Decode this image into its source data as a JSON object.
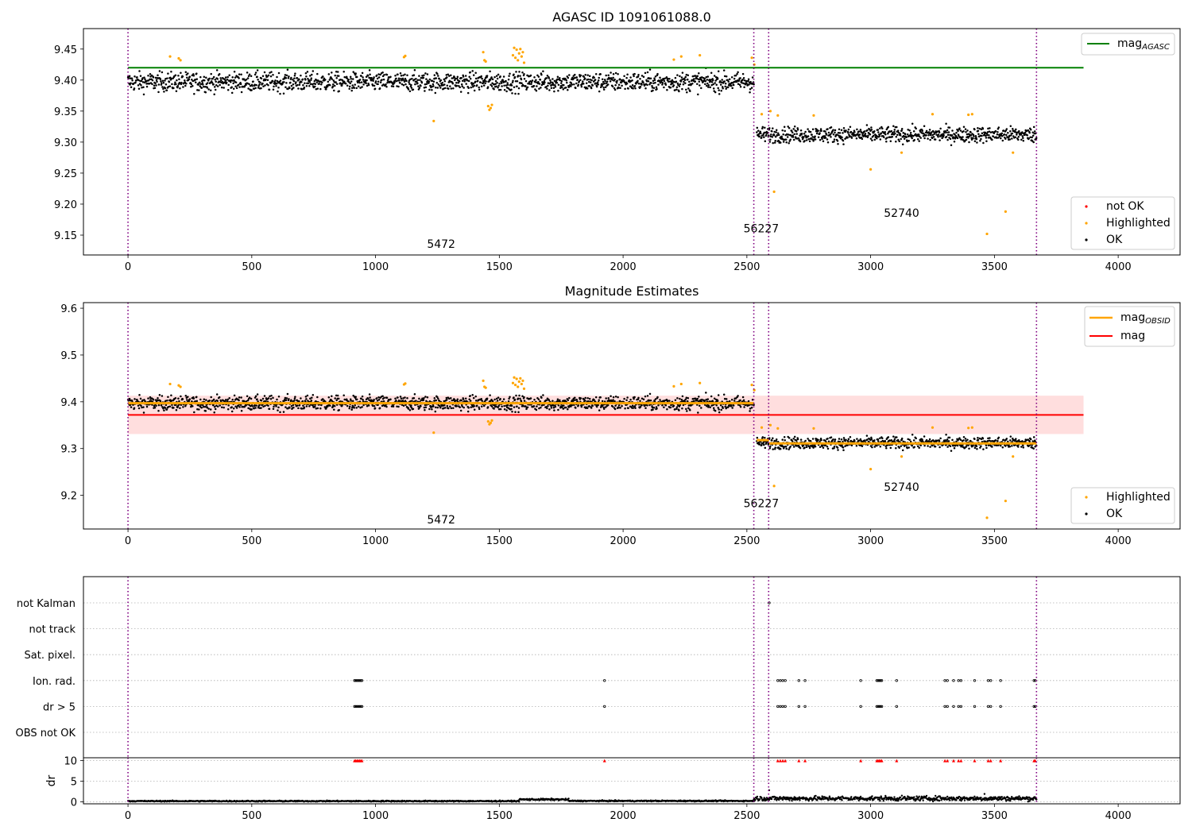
{
  "colors": {
    "ok": "#000000",
    "highlighted": "#ffa500",
    "not_ok": "#ff0000",
    "mag_agasc_line": "#008000",
    "mag_obsid_line": "#ffa500",
    "mag_line": "#ff0000",
    "mag_band": "#ffcccc",
    "obs_boundaries": "#800080",
    "flag_points": "#000000",
    "dr_flagged": "#ff0000"
  },
  "chart_data": [
    {
      "type": "scatter",
      "title": "AGASC ID 1091061088.0",
      "xlim": [
        -180,
        4250
      ],
      "ylim": [
        9.118,
        9.483
      ],
      "xticks": [
        0,
        500,
        1000,
        1500,
        2000,
        2500,
        3000,
        3500,
        4000
      ],
      "yticks": [
        9.15,
        9.2,
        9.25,
        9.3,
        9.35,
        9.4,
        9.45
      ],
      "grid": false,
      "legend_top": {
        "position": "top-right",
        "entries": [
          "mag_AGASC"
        ]
      },
      "legend_bottom": {
        "position": "lower-right",
        "entries": [
          "not OK",
          "Highlighted",
          "OK"
        ]
      },
      "mag_agasc": 9.42,
      "mag_agasc_x_range": [
        0,
        3860
      ],
      "obs_boundaries": [
        0,
        2528,
        2588,
        3670
      ],
      "obs_labels": [
        {
          "text": "5472",
          "x": 1265,
          "y": 9.136
        },
        {
          "text": "56227",
          "x": 2558,
          "y": 9.161
        },
        {
          "text": "52740",
          "x": 3125,
          "y": 9.186
        }
      ],
      "series": [
        {
          "name": "OK",
          "segments": [
            {
              "x_range": [
                0,
                2528
              ],
              "mean": 9.397,
              "scatter": 0.011
            },
            {
              "x_range": [
                2540,
                3670
              ],
              "mean": 9.312,
              "scatter": 0.009
            }
          ]
        },
        {
          "name": "Highlighted",
          "points": [
            [
              170,
              9.438
            ],
            [
              205,
              9.435
            ],
            [
              212,
              9.432
            ],
            [
              1115,
              9.437
            ],
            [
              1120,
              9.439
            ],
            [
              1235,
              9.334
            ],
            [
              1435,
              9.445
            ],
            [
              1440,
              9.432
            ],
            [
              1445,
              9.43
            ],
            [
              1455,
              9.358
            ],
            [
              1460,
              9.352
            ],
            [
              1465,
              9.355
            ],
            [
              1470,
              9.36
            ],
            [
              1555,
              9.44
            ],
            [
              1560,
              9.452
            ],
            [
              1565,
              9.436
            ],
            [
              1570,
              9.449
            ],
            [
              1575,
              9.432
            ],
            [
              1580,
              9.443
            ],
            [
              1585,
              9.45
            ],
            [
              1590,
              9.438
            ],
            [
              1595,
              9.445
            ],
            [
              1600,
              9.428
            ],
            [
              2205,
              9.433
            ],
            [
              2235,
              9.438
            ],
            [
              2310,
              9.44
            ],
            [
              2520,
              9.436
            ],
            [
              2530,
              9.425
            ],
            [
              2560,
              9.345
            ],
            [
              2595,
              9.35
            ],
            [
              2610,
              9.22
            ],
            [
              2625,
              9.343
            ],
            [
              2770,
              9.343
            ],
            [
              3000,
              9.256
            ],
            [
              3125,
              9.283
            ],
            [
              3250,
              9.345
            ],
            [
              3395,
              9.344
            ],
            [
              3410,
              9.345
            ],
            [
              3470,
              9.152
            ],
            [
              3545,
              9.188
            ],
            [
              3575,
              9.283
            ]
          ]
        },
        {
          "name": "not OK",
          "points": []
        }
      ]
    },
    {
      "type": "scatter",
      "title": "Magnitude Estimates",
      "xlim": [
        -180,
        4250
      ],
      "ylim": [
        9.128,
        9.612
      ],
      "xticks": [
        0,
        500,
        1000,
        1500,
        2000,
        2500,
        3000,
        3500,
        4000
      ],
      "yticks": [
        9.2,
        9.3,
        9.4,
        9.5,
        9.6
      ],
      "grid": false,
      "legend_top": {
        "position": "top-right",
        "entries": [
          "mag_OBSID",
          "mag"
        ]
      },
      "legend_bottom": {
        "position": "lower-right",
        "entries": [
          "Highlighted",
          "OK"
        ]
      },
      "mag": 9.372,
      "mag_band": [
        9.331,
        9.413
      ],
      "mag_x_range": [
        0,
        3860
      ],
      "mag_obsid": [
        {
          "x_range": [
            0,
            2528
          ],
          "value": 9.397
        },
        {
          "x_range": [
            2540,
            2590
          ],
          "value": 9.318
        },
        {
          "x_range": [
            2590,
            3670
          ],
          "value": 9.311
        }
      ],
      "obs_boundaries": [
        0,
        2528,
        2588,
        3670
      ],
      "obs_labels": [
        {
          "text": "5472",
          "x": 1265,
          "y": 9.148
        },
        {
          "text": "56227",
          "x": 2558,
          "y": 9.183
        },
        {
          "text": "52740",
          "x": 3125,
          "y": 9.218
        }
      ]
    },
    {
      "type": "scatter",
      "title": "",
      "xlim": [
        -180,
        4250
      ],
      "xticks": [
        0,
        500,
        1000,
        1500,
        2000,
        2500,
        3000,
        3500,
        4000
      ],
      "flag_rows": [
        "not Kalman",
        "not track",
        "Sat. pixel.",
        "Ion. rad.",
        "dr > 5",
        "OBS not OK"
      ],
      "flag_points": {
        "not Kalman": [
          2590
        ],
        "Ion. rad.": [
          915,
          920,
          925,
          930,
          935,
          940,
          945,
          1925,
          2625,
          2635,
          2645,
          2655,
          2710,
          2735,
          2960,
          3025,
          3030,
          3035,
          3040,
          3045,
          3105,
          3300,
          3310,
          3335,
          3355,
          3365,
          3420,
          3475,
          3485,
          3525,
          3660,
          3665
        ],
        "dr > 5": [
          915,
          920,
          925,
          930,
          935,
          940,
          945,
          1925,
          2625,
          2635,
          2645,
          2655,
          2710,
          2735,
          2960,
          3025,
          3030,
          3035,
          3040,
          3045,
          3105,
          3300,
          3310,
          3335,
          3355,
          3365,
          3420,
          3475,
          3485,
          3525,
          3660,
          3665
        ]
      },
      "dr_ylabel": "dr",
      "dr_yticks": [
        0,
        5,
        10
      ],
      "dr_ylim": [
        -0.5,
        10.7
      ],
      "dr_profile": [
        {
          "x_range": [
            0,
            1580
          ],
          "mean": 0.15,
          "scatter": 0.1
        },
        {
          "x_range": [
            1580,
            1780
          ],
          "mean": 0.55,
          "scatter": 0.15
        },
        {
          "x_range": [
            1780,
            2528
          ],
          "mean": 0.2,
          "scatter": 0.1
        },
        {
          "x_range": [
            2528,
            3670
          ],
          "mean": 0.8,
          "scatter": 0.4
        }
      ],
      "dr_outliers": [
        [
          2590,
          2.8
        ],
        [
          3460,
          1.9
        ]
      ],
      "obs_boundaries": [
        0,
        2528,
        2588,
        3670
      ]
    }
  ]
}
